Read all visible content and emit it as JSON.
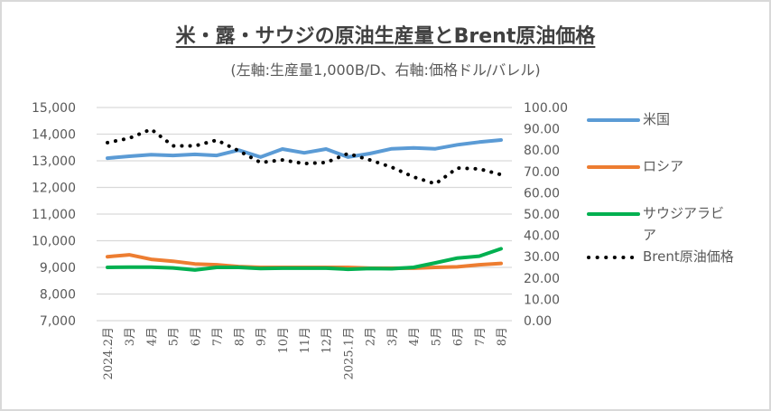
{
  "chart_data": {
    "type": "line",
    "title": "米・露・サウジの原油生産量とBrent原油価格",
    "subtitle": "(左軸:生産量1,000B/D、右軸:価格ドル/バレル)",
    "categories": [
      "2024.2月",
      "3月",
      "4月",
      "5月",
      "6月",
      "7月",
      "8月",
      "9月",
      "10月",
      "11月",
      "12月",
      "2025.1月",
      "2月",
      "3月",
      "4月",
      "5月",
      "6月",
      "7月",
      "8月"
    ],
    "y_left": {
      "range": [
        7000,
        15000
      ],
      "ticks": [
        "15,000",
        "14,000",
        "13,000",
        "12,000",
        "11,000",
        "10,000",
        "9,000",
        "8,000",
        "7,000"
      ],
      "tick_values": [
        15000,
        14000,
        13000,
        12000,
        11000,
        10000,
        9000,
        8000,
        7000
      ]
    },
    "y_right": {
      "range": [
        0,
        100
      ],
      "ticks": [
        "100.00",
        "90.00",
        "80.00",
        "70.00",
        "60.00",
        "50.00",
        "40.00",
        "30.00",
        "20.00",
        "10.00",
        "0.00"
      ],
      "tick_values": [
        100,
        90,
        80,
        70,
        60,
        50,
        40,
        30,
        20,
        10,
        0
      ]
    },
    "grid": true,
    "legend_position": "right",
    "series": [
      {
        "name": "米国",
        "axis": "left",
        "color": "#5b9bd5",
        "style": "solid",
        "values": [
          13100,
          13170,
          13230,
          13200,
          13240,
          13200,
          13400,
          13140,
          13440,
          13300,
          13440,
          13140,
          13270,
          13450,
          13480,
          13450,
          13600,
          13700,
          13780
        ]
      },
      {
        "name": "ロシア",
        "axis": "left",
        "color": "#ed7d31",
        "style": "solid",
        "values": [
          9400,
          9470,
          9300,
          9230,
          9130,
          9100,
          9030,
          9000,
          9000,
          9000,
          9000,
          9000,
          8970,
          8970,
          8970,
          9000,
          9020,
          9100,
          9150
        ]
      },
      {
        "name": "サウジアラビア",
        "axis": "left",
        "color": "#00b050",
        "style": "solid",
        "values": [
          9000,
          9010,
          9010,
          8980,
          8900,
          9000,
          9000,
          8960,
          8970,
          8970,
          8970,
          8930,
          8960,
          8950,
          9000,
          9170,
          9350,
          9420,
          9700
        ]
      },
      {
        "name": "Brent原油価格",
        "axis": "right",
        "color": "#000000",
        "style": "dotted",
        "values": [
          83.5,
          85.6,
          89.8,
          82.0,
          82.0,
          84.7,
          79.7,
          74.2,
          75.4,
          73.7,
          74.2,
          78.4,
          75.4,
          72.0,
          67.4,
          64.2,
          71.6,
          71.2,
          68.5
        ]
      }
    ]
  },
  "legend": {
    "items": [
      "米国",
      "ロシア",
      "サウジアラビ",
      "ア",
      "Brent原油価格"
    ]
  }
}
